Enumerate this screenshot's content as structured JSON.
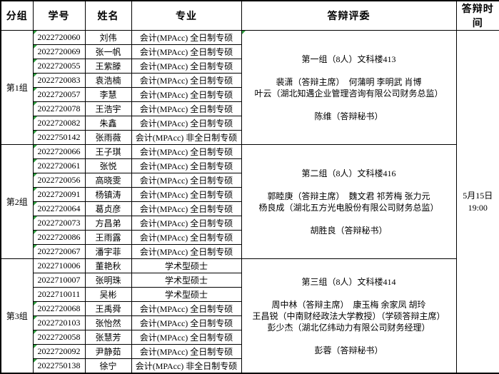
{
  "colors": {
    "border": "#000000",
    "background": "#ffffff",
    "text": "#000000",
    "error_triangle_green": "#2f9e3f"
  },
  "table": {
    "headers": [
      "分组",
      "学号",
      "姓名",
      "专业",
      "答辩评委",
      "答辩时间"
    ],
    "defense_time_lines": [
      "5月15日",
      "19:00"
    ],
    "groups": [
      {
        "label": "第1组",
        "committee_flag": true,
        "committee_lines": [
          "第一组（8人）文科楼413",
          "",
          "裴潇（答辩主席）  何蒲明 李明武 肖博",
          "叶云（湖北知遇企业管理咨询有限公司财务总监）",
          "",
          "陈维（答辩秘书）"
        ],
        "students": [
          {
            "id": "2022720060",
            "name": "刘伟",
            "major": "会计(MPAcc)  全日制专硕",
            "id_flag": true
          },
          {
            "id": "2022720069",
            "name": "张一帆",
            "major": "会计(MPAcc)  全日制专硕",
            "id_flag": true
          },
          {
            "id": "2022720055",
            "name": "王紫滕",
            "major": "会计(MPAcc)  全日制专硕",
            "id_flag": true
          },
          {
            "id": "2022720083",
            "name": "袁浩楠",
            "major": "会计(MPAcc)  全日制专硕",
            "id_flag": true
          },
          {
            "id": "2022720057",
            "name": "李慧",
            "major": "会计(MPAcc)  全日制专硕",
            "id_flag": true
          },
          {
            "id": "2022720078",
            "name": "王浩宇",
            "major": "会计(MPAcc)  全日制专硕",
            "id_flag": true
          },
          {
            "id": "2022720082",
            "name": "朱鑫",
            "major": "会计(MPAcc)  全日制专硕",
            "id_flag": true
          },
          {
            "id": "2022750142",
            "name": "张雨薇",
            "major": "会计(MPAcc) 非全日制专硕",
            "id_flag": true
          }
        ]
      },
      {
        "label": "第2组",
        "committee_flag": false,
        "committee_lines": [
          "第二组（8人）文科楼416",
          "",
          "郭睦庚（答辩主席）  魏文君 祁芳梅 张力元",
          "杨良成（湖北五方光电股份有限公司财务总监）",
          "",
          "胡胜良（答辩秘书）"
        ],
        "students": [
          {
            "id": "2022720066",
            "name": "王子琪",
            "major": "会计(MPAcc)  全日制专硕",
            "id_flag": true
          },
          {
            "id": "2022720061",
            "name": "张悦",
            "major": "会计(MPAcc)  全日制专硕",
            "id_flag": true
          },
          {
            "id": "2022720056",
            "name": "高晓雯",
            "major": "会计(MPAcc)  全日制专硕",
            "id_flag": true
          },
          {
            "id": "2022720091",
            "name": "杨镇涛",
            "major": "会计(MPAcc)  全日制专硕",
            "id_flag": true
          },
          {
            "id": "2022720064",
            "name": "葛贞彦",
            "major": "会计(MPAcc)  全日制专硕",
            "id_flag": true
          },
          {
            "id": "2022720073",
            "name": "方昌弟",
            "major": "会计(MPAcc)  全日制专硕",
            "id_flag": true
          },
          {
            "id": "2022720086",
            "name": "王雨露",
            "major": "会计(MPAcc)  全日制专硕",
            "id_flag": true
          },
          {
            "id": "2022720067",
            "name": "潘宇菲",
            "major": "会计(MPAcc)  全日制专硕",
            "id_flag": true
          }
        ]
      },
      {
        "label": "第3组",
        "committee_flag": false,
        "committee_lines": [
          "第三组（8人）文科楼414",
          "",
          "周中林（答辩主席）  康玉梅 余家凤 胡玲",
          "王昌锐（中南财经政法大学教授）（学硕答辩主席）",
          "彭少杰（湖北亿纬动力有限公司财务经理）",
          "",
          "彭蓉（答辩秘书）"
        ],
        "students": [
          {
            "id": "2022710006",
            "name": "董艳秋",
            "major": "学术型硕士",
            "id_flag": false
          },
          {
            "id": "2022710007",
            "name": "张明珠",
            "major": "学术型硕士",
            "id_flag": false
          },
          {
            "id": "2022710011",
            "name": "吴彬",
            "major": "学术型硕士",
            "id_flag": false
          },
          {
            "id": "2022720068",
            "name": "王禹舜",
            "major": "会计(MPAcc)  全日制专硕",
            "id_flag": true
          },
          {
            "id": "2022720103",
            "name": "张怡然",
            "major": "会计(MPAcc)  全日制专硕",
            "id_flag": true
          },
          {
            "id": "2022720058",
            "name": "张慧芳",
            "major": "会计(MPAcc)  全日制专硕",
            "id_flag": true
          },
          {
            "id": "2022720092",
            "name": "尹静茹",
            "major": "会计(MPAcc)  全日制专硕",
            "id_flag": true
          },
          {
            "id": "2022750138",
            "name": "徐宁",
            "major": "会计(MPAcc) 非全日制专硕",
            "id_flag": true
          }
        ]
      }
    ]
  }
}
